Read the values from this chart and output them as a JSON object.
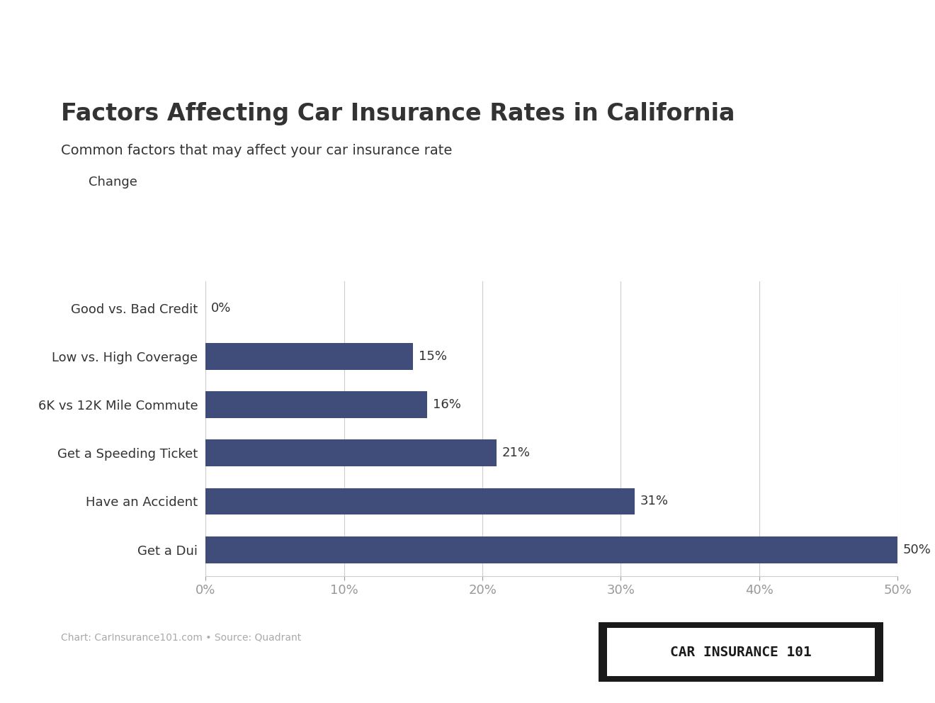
{
  "title": "Factors Affecting Car Insurance Rates in California",
  "subtitle": "Common factors that may affect your car insurance rate",
  "legend_label": "Change",
  "categories": [
    "Get a Dui",
    "Have an Accident",
    "Get a Speeding Ticket",
    "6K vs 12K Mile Commute",
    "Low vs. High Coverage",
    "Good vs. Bad Credit"
  ],
  "values": [
    50,
    31,
    21,
    16,
    15,
    0
  ],
  "value_labels": [
    "50%",
    "31%",
    "21%",
    "16%",
    "15%",
    "0%"
  ],
  "bar_color": "#404d7a",
  "background_color": "#ffffff",
  "text_color": "#333333",
  "grid_color": "#cccccc",
  "source_text": "Chart: CarInsurance101.com • Source: Quadrant",
  "logo_text": "CAR INSURANCE 101",
  "xlim": [
    0,
    50
  ],
  "xticks": [
    0,
    10,
    20,
    30,
    40,
    50
  ],
  "xtick_labels": [
    "0%",
    "10%",
    "20%",
    "30%",
    "40%",
    "50%"
  ],
  "title_fontsize": 24,
  "subtitle_fontsize": 14,
  "label_fontsize": 13,
  "tick_fontsize": 13,
  "value_fontsize": 13,
  "bar_height": 0.55,
  "top_line_color": "#cccccc"
}
